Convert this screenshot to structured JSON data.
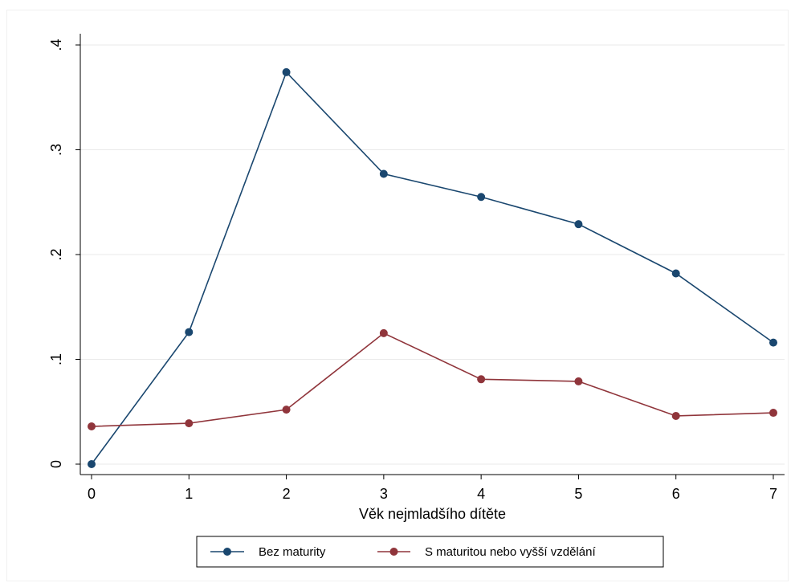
{
  "chart_data": {
    "type": "line",
    "title": "",
    "xlabel": "Věk nejmladšího dítěte",
    "ylabel": "",
    "x": [
      0,
      1,
      2,
      3,
      4,
      5,
      6,
      7
    ],
    "xlim": [
      0,
      7
    ],
    "ylim": [
      0,
      0.4
    ],
    "x_ticks": [
      {
        "value": 0,
        "label": "0"
      },
      {
        "value": 1,
        "label": "1"
      },
      {
        "value": 2,
        "label": "2"
      },
      {
        "value": 3,
        "label": "3"
      },
      {
        "value": 4,
        "label": "4"
      },
      {
        "value": 5,
        "label": "5"
      },
      {
        "value": 6,
        "label": "6"
      },
      {
        "value": 7,
        "label": "7"
      }
    ],
    "y_ticks": [
      {
        "value": 0,
        "label": "0"
      },
      {
        "value": 0.1,
        "label": ".1"
      },
      {
        "value": 0.2,
        "label": ".2"
      },
      {
        "value": 0.3,
        "label": ".3"
      },
      {
        "value": 0.4,
        "label": ".4"
      }
    ],
    "grid": "horizontal",
    "legend_position": "bottom",
    "series": [
      {
        "name": "Bez maturity",
        "color": "#1a476f",
        "values": [
          0.0,
          0.126,
          0.374,
          0.277,
          0.255,
          0.229,
          0.182,
          0.116
        ]
      },
      {
        "name": "S maturitou nebo vyšší vzdělání",
        "color": "#90353b",
        "values": [
          0.036,
          0.039,
          0.052,
          0.125,
          0.081,
          0.079,
          0.046,
          0.049
        ]
      }
    ]
  }
}
